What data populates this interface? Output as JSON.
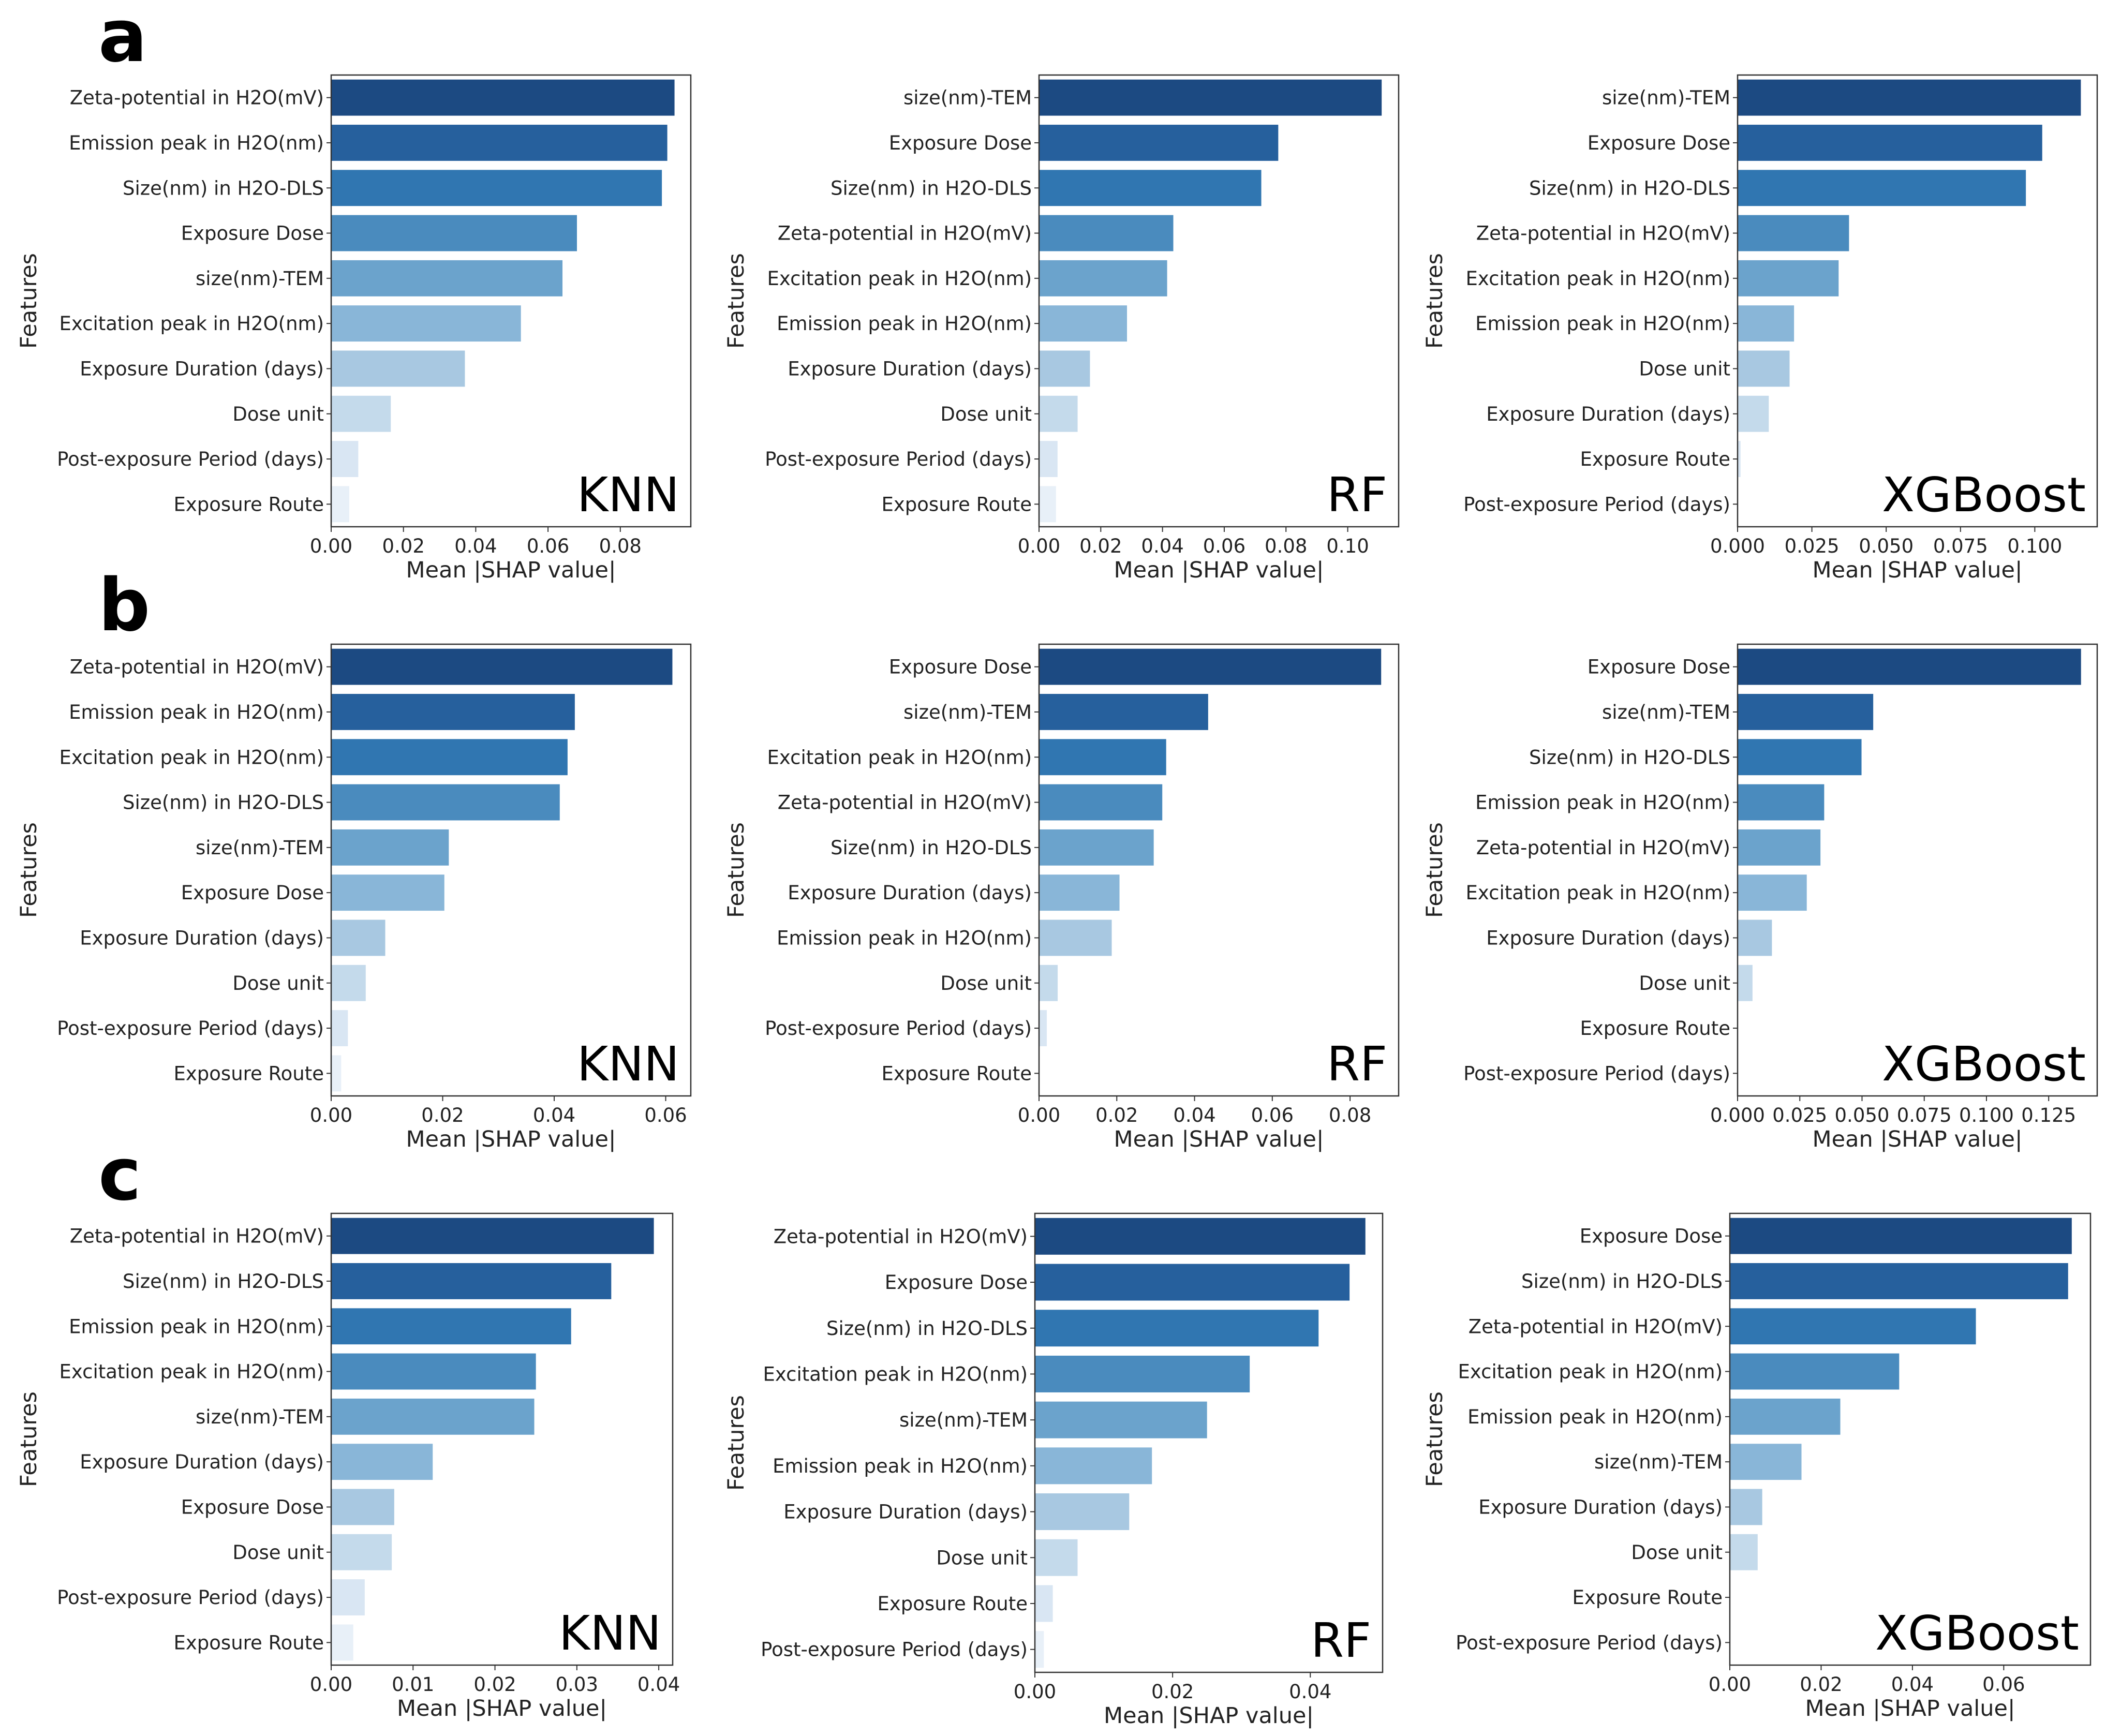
{
  "xlabel": "Mean |SHAP value|",
  "ylabel": "Features",
  "rows": [
    {
      "label": "a"
    },
    {
      "label": "b"
    },
    {
      "label": "c"
    }
  ],
  "palette": [
    "#1c4a82",
    "#26609d",
    "#3076b1",
    "#4a8bbe",
    "#6ba3cc",
    "#89b6d8",
    "#a8c8e1",
    "#c4daeb",
    "#d9e6f3",
    "#e8f0f8"
  ],
  "chart_data": [
    {
      "type": "bar",
      "row": "a",
      "model": "KNN",
      "categories": [
        "Zeta-potential in H2O(mV)",
        "Emission peak in H2O(nm)",
        "Size(nm) in H2O-DLS",
        "Exposure Dose",
        "size(nm)-TEM",
        "Excitation peak in H2O(nm)",
        "Exposure Duration (days)",
        "Dose unit",
        "Post-exposure Period (days)",
        "Exposure Route"
      ],
      "values": [
        0.095,
        0.093,
        0.0915,
        0.068,
        0.064,
        0.0525,
        0.037,
        0.0165,
        0.0075,
        0.005
      ],
      "xlim": [
        0,
        0.0995
      ],
      "xticks": [
        0,
        0.02,
        0.04,
        0.06,
        0.08
      ],
      "xtick_labels": [
        "0.00",
        "0.02",
        "0.04",
        "0.06",
        "0.08"
      ]
    },
    {
      "type": "bar",
      "row": "a",
      "model": "RF",
      "categories": [
        "size(nm)-TEM",
        "Exposure Dose",
        "Size(nm) in H2O-DLS",
        "Zeta-potential in H2O(mV)",
        "Excitation peak in H2O(nm)",
        "Emission peak in H2O(nm)",
        "Exposure Duration (days)",
        "Dose unit",
        "Post-exposure Period (days)",
        "Exposure Route"
      ],
      "values": [
        0.111,
        0.0775,
        0.072,
        0.0435,
        0.0415,
        0.0285,
        0.0165,
        0.0125,
        0.006,
        0.0055
      ],
      "xlim": [
        0,
        0.1165
      ],
      "xticks": [
        0,
        0.02,
        0.04,
        0.06,
        0.08,
        0.1
      ],
      "xtick_labels": [
        "0.00",
        "0.02",
        "0.04",
        "0.06",
        "0.08",
        "0.10"
      ]
    },
    {
      "type": "bar",
      "row": "a",
      "model": "XGBoost",
      "categories": [
        "size(nm)-TEM",
        "Exposure Dose",
        "Size(nm) in H2O-DLS",
        "Zeta-potential in H2O(mV)",
        "Excitation peak in H2O(nm)",
        "Emission peak in H2O(nm)",
        "Dose unit",
        "Exposure Duration (days)",
        "Exposure Route",
        "Post-exposure Period (days)"
      ],
      "values": [
        0.1155,
        0.1025,
        0.097,
        0.0375,
        0.034,
        0.019,
        0.0175,
        0.0105,
        0.001,
        0.0
      ],
      "xlim": [
        0,
        0.121
      ],
      "xticks": [
        0,
        0.025,
        0.05,
        0.075,
        0.1
      ],
      "xtick_labels": [
        "0.000",
        "0.025",
        "0.050",
        "0.075",
        "0.100"
      ]
    },
    {
      "type": "bar",
      "row": "b",
      "model": "KNN",
      "categories": [
        "Zeta-potential in H2O(mV)",
        "Emission peak in H2O(nm)",
        "Excitation peak in H2O(nm)",
        "Size(nm) in H2O-DLS",
        "size(nm)-TEM",
        "Exposure Dose",
        "Exposure Duration (days)",
        "Dose unit",
        "Post-exposure Period (days)",
        "Exposure Route"
      ],
      "values": [
        0.0612,
        0.0437,
        0.0424,
        0.041,
        0.0211,
        0.0203,
        0.0097,
        0.0062,
        0.003,
        0.0018
      ],
      "xlim": [
        0,
        0.0645
      ],
      "xticks": [
        0,
        0.02,
        0.04,
        0.06
      ],
      "xtick_labels": [
        "0.00",
        "0.02",
        "0.04",
        "0.06"
      ]
    },
    {
      "type": "bar",
      "row": "b",
      "model": "RF",
      "categories": [
        "Exposure Dose",
        "size(nm)-TEM",
        "Excitation peak in H2O(nm)",
        "Zeta-potential in H2O(mV)",
        "Size(nm) in H2O-DLS",
        "Exposure Duration (days)",
        "Emission peak in H2O(nm)",
        "Dose unit",
        "Post-exposure Period (days)",
        "Exposure Route"
      ],
      "values": [
        0.088,
        0.0435,
        0.0327,
        0.0317,
        0.0295,
        0.0207,
        0.0187,
        0.0048,
        0.002,
        0.0
      ],
      "xlim": [
        0,
        0.0925
      ],
      "xticks": [
        0,
        0.02,
        0.04,
        0.06,
        0.08
      ],
      "xtick_labels": [
        "0.00",
        "0.02",
        "0.04",
        "0.06",
        "0.08"
      ]
    },
    {
      "type": "bar",
      "row": "b",
      "model": "XGBoost",
      "categories": [
        "Exposure Dose",
        "size(nm)-TEM",
        "Size(nm) in H2O-DLS",
        "Emission peak in H2O(nm)",
        "Zeta-potential in H2O(mV)",
        "Excitation peak in H2O(nm)",
        "Exposure Duration (days)",
        "Dose unit",
        "Exposure Route",
        "Post-exposure Period (days)"
      ],
      "values": [
        0.138,
        0.0545,
        0.0498,
        0.0348,
        0.0333,
        0.0278,
        0.0138,
        0.006,
        0.0,
        0.0
      ],
      "xlim": [
        0,
        0.1445
      ],
      "xticks": [
        0,
        0.025,
        0.05,
        0.075,
        0.1,
        0.125
      ],
      "xtick_labels": [
        "0.000",
        "0.025",
        "0.050",
        "0.075",
        "0.100",
        "0.125"
      ]
    },
    {
      "type": "bar",
      "row": "c",
      "model": "KNN",
      "categories": [
        "Zeta-potential in H2O(mV)",
        "Size(nm) in H2O-DLS",
        "Emission peak in H2O(nm)",
        "Excitation peak in H2O(nm)",
        "size(nm)-TEM",
        "Exposure Duration (days)",
        "Exposure Dose",
        "Dose unit",
        "Post-exposure Period (days)",
        "Exposure Route"
      ],
      "values": [
        0.0394,
        0.0342,
        0.0293,
        0.025,
        0.0248,
        0.0124,
        0.0077,
        0.0074,
        0.0041,
        0.0027
      ],
      "xlim": [
        0,
        0.0417
      ],
      "xticks": [
        0,
        0.01,
        0.02,
        0.03,
        0.04
      ],
      "xtick_labels": [
        "0.00",
        "0.01",
        "0.02",
        "0.03",
        "0.04"
      ]
    },
    {
      "type": "bar",
      "row": "c",
      "model": "RF",
      "categories": [
        "Zeta-potential in H2O(mV)",
        "Exposure Dose",
        "Size(nm) in H2O-DLS",
        "Excitation peak in H2O(nm)",
        "size(nm)-TEM",
        "Emission peak in H2O(nm)",
        "Exposure Duration (days)",
        "Dose unit",
        "Exposure Route",
        "Post-exposure Period (days)"
      ],
      "values": [
        0.048,
        0.0457,
        0.0412,
        0.0312,
        0.025,
        0.017,
        0.0137,
        0.0062,
        0.0026,
        0.0013
      ],
      "xlim": [
        0,
        0.0505
      ],
      "xticks": [
        0,
        0.02,
        0.04
      ],
      "xtick_labels": [
        "0.00",
        "0.02",
        "0.04"
      ]
    },
    {
      "type": "bar",
      "row": "c",
      "model": "XGBoost",
      "categories": [
        "Exposure Dose",
        "Size(nm) in H2O-DLS",
        "Zeta-potential in H2O(mV)",
        "Excitation peak in H2O(nm)",
        "Emission peak in H2O(nm)",
        "size(nm)-TEM",
        "Exposure Duration (days)",
        "Dose unit",
        "Exposure Route",
        "Post-exposure Period (days)"
      ],
      "values": [
        0.0749,
        0.0741,
        0.0539,
        0.0371,
        0.0242,
        0.0157,
        0.0071,
        0.0061,
        0.0,
        0.0
      ],
      "xlim": [
        0,
        0.079
      ],
      "xticks": [
        0,
        0.02,
        0.04,
        0.06
      ],
      "xtick_labels": [
        "0.00",
        "0.02",
        "0.04",
        "0.06"
      ]
    }
  ]
}
